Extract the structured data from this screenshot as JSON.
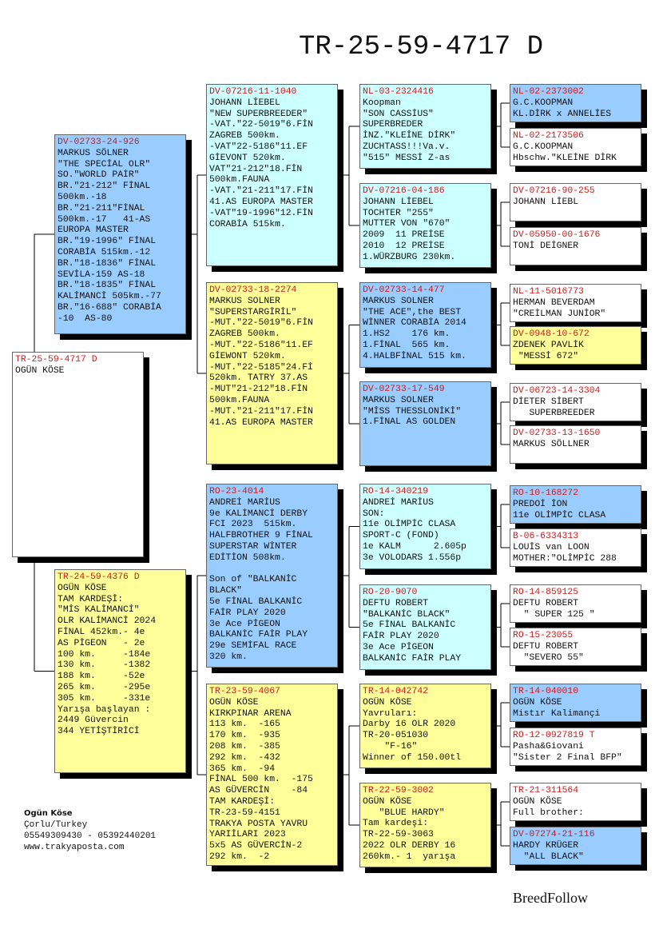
{
  "title": "TR-25-59-4717 D",
  "colors": {
    "blue": "#99ccff",
    "cyan": "#ccffff",
    "yellow": "#ffff99",
    "white": "#ffffff",
    "ring": "#d0191b"
  },
  "boxes": [
    {
      "id": "subject",
      "color": "#ffffff",
      "ring": "TR-25-59-4717 D",
      "lines": [
        "OGÜN KÖSE"
      ]
    },
    {
      "id": "sire",
      "color": "#99ccff",
      "ring": "DV-02733-24-926",
      "lines": [
        "MARKUS SÖLNER",
        "\"THE SPECİAL OLR\"",
        "SO.\"WORLD PAİR\"",
        "BR.\"21-212\" FİNAL",
        "500km.-18",
        "BR.\"21-211\"FİNAL",
        "500km.-17   41-AS",
        "EUROPA MASTER",
        "BR.\"19-1996\" FİNAL",
        "CORABİA 515km.-12",
        "BR.\"18-1836\" FİNAL",
        "SEVİLA-159 AS-18",
        "BR.\"18-1835\" FİNAL",
        "KALİMANCİ 505km.-77",
        "BR.\"16-688\" CORABİA",
        "-10  AS-80"
      ]
    },
    {
      "id": "dam",
      "color": "#ffff99",
      "ring": "TR-24-59-4376 D",
      "lines": [
        "OGÜN KÖSE",
        "TAM KARDEŞİ:",
        "\"MİS KALİMANCİ\"",
        "OLR KALİMANCİ 2024",
        "FİNAL 452km.- 4e",
        "AS PİGEON   - 2e",
        "100 km.     -184e",
        "130 km.     -1382",
        "188 km.     -52e",
        "265 km.     -295e",
        "305 km.     -331e",
        "Yarışa başlayan :",
        "2449 Güvercin",
        "344 YETİŞTİRİCİ"
      ]
    },
    {
      "id": "ss",
      "color": "#ccffff",
      "ring": "DV-07216-11-1040",
      "lines": [
        "JOHANN LİEBEL",
        "\"NEW SUPERBREEDER\"",
        "-VAT.\"22-5019\"6.FİN",
        "ZAGREB 500km.",
        "-VAT\"22-5186\"11.EF",
        "GİEVONT 520km.",
        "VAT\"21-212\"18.FİN",
        "500km.FAUNA",
        "-VAT.\"21-211\"17.FİN",
        "41.AS EUROPA MASTER",
        "-VAT\"19-1996\"12.FİN",
        "CORABİA 515km."
      ]
    },
    {
      "id": "sd",
      "color": "#ffff99",
      "ring": "DV-02733-18-2274",
      "lines": [
        "MARKUS SOLNER",
        "\"SUPERSTARGİRİL\"",
        "-MUT.\"22-5019\"6.FİN",
        "ZAGREB 500km.",
        "-MUT.\"22-5186\"11.EF",
        "GİEWONT 520km.",
        "-MUT.\"22-5185\"24.Fİ",
        "520km. TATRY 37.AS",
        "-MUT\"21-212\"18.FİN",
        "500km.FAUNA",
        "-MUT.\"21-211\"17.FİN",
        "41.AS EUROPA MASTER"
      ]
    },
    {
      "id": "ds",
      "color": "#99ccff",
      "ring": "RO-23-4014",
      "lines": [
        "ANDREİ MARİUS",
        "9e KALİMANCİ DERBY",
        "FCI 2023  515km.",
        "HALFBROTHER 9 FİNAL",
        "SUPERSTAR WİNTER",
        "EDİTİON 508km.",
        "",
        "Son of \"BALKANİC",
        "BLACK\"",
        "5e FİNAL BALKANİC",
        "FAİR PLAY 2020",
        "3e Ace PİGEON",
        "BALKANİC FAİR PLAY",
        "29e SEMİFAL RACE",
        "320 km."
      ]
    },
    {
      "id": "dd",
      "color": "#ffff99",
      "ring": "TR-23-59-4067",
      "lines": [
        "OGÜN KÖSE",
        "KIRKPINAR ARENA",
        "113 km.  -165",
        "170 km.  -935",
        "208 km.  -385",
        "292 km.  -432",
        "365 km.  -94",
        "FİNAL 500 km.  -175",
        "AS GÜVERCİN    -84",
        "TAM KARDEŞİ:",
        "TR-23-59-4151",
        "TRAKYA POSTA YAVRU",
        "YARIİLARI 2023",
        "5x5 AS GÜVERCİN-2",
        "292 km.  -2"
      ]
    },
    {
      "id": "sss",
      "color": "#ccffff",
      "ring": "NL-03-2324416",
      "lines": [
        "Koopman",
        "\"SON CASSİUS\"",
        "SUPERBREDER",
        "İNZ.\"KLEİNE DİRK\"",
        "ZUCHTASS!!!Va.v.",
        "\"515\" MESSİ Z-as"
      ]
    },
    {
      "id": "ssd",
      "color": "#ccffff",
      "ring": "DV-07216-04-186",
      "lines": [
        "JOHANN LİEBEL",
        "TOCHTER \"255\"",
        "MUTTER VON \"670\"",
        "2009  11 PREİSE",
        "2010  12 PREİSE",
        "1.WÜRZBURG 230km."
      ]
    },
    {
      "id": "sds",
      "color": "#99ccff",
      "ring": "DV-02733-14-477",
      "lines": [
        "MARKUS SOLNER",
        "\"THE ACE\",the BEST",
        "WİNNER CORABİA 2014",
        "1.HS2    176 km.",
        "1.FİNAL  565 km.",
        "4.HALBFİNAL 515 km."
      ]
    },
    {
      "id": "sdd",
      "color": "#99ccff",
      "ring": "DV-02733-17-549",
      "lines": [
        "MARKUS SOLNER",
        "\"MİSS THESSLONİKİ\"",
        "1.FİNAL AS GOLDEN"
      ]
    },
    {
      "id": "dss",
      "color": "#ccffff",
      "ring": "RO-14-340219",
      "lines": [
        "ANDREİ MARİUS",
        "SON:",
        "11e OLİMPİC CLASA",
        "SPORT-C (FOND)",
        "1e KALM      2.605p",
        "3e VOLODARS 1.556p"
      ]
    },
    {
      "id": "dsd",
      "color": "#ccffff",
      "ring": "RO-20-9070",
      "lines": [
        "DEFTU ROBERT",
        "\"BALKANİC BLACK\"",
        "5e FİNAL BALKANİC",
        "FAİR PLAY 2020",
        "3e Ace PİGEON",
        "BALKANİC FAİR PLAY"
      ]
    },
    {
      "id": "dds",
      "color": "#ffff99",
      "ring": "TR-14-042742",
      "lines": [
        "OGÜN KÖSE",
        "Yavruları:",
        "Darby 16 OLR 2020",
        "TR-20-051030",
        "    \"F-16\"",
        "Winner of 150.00tl"
      ]
    },
    {
      "id": "ddd",
      "color": "#ffff99",
      "ring": "TR-22-59-3002",
      "lines": [
        "OGÜN KÖSE",
        "   \"BLUE HARDY\"",
        "Tam kardeşi:",
        "TR-22-59-3063",
        "2022 OLR DERBY 16",
        "260km.- 1  yarışa"
      ]
    },
    {
      "id": "g4-1",
      "color": "#99ccff",
      "ring": "NL-02-2373002",
      "lines": [
        "G.C.KOOPMAN",
        "KL.DİRK x ANNELİES"
      ]
    },
    {
      "id": "g4-2",
      "color": "#ffffff",
      "ring": "NL-02-2173506",
      "lines": [
        "G.C.KOOPMAN",
        "Hbschw.\"KLEİNE DİRK"
      ]
    },
    {
      "id": "g4-3",
      "color": "#ffffff",
      "ring": "DV-07216-90-255",
      "lines": [
        "JOHANN LİEBL"
      ]
    },
    {
      "id": "g4-4",
      "color": "#ffffff",
      "ring": "DV-05950-00-1676",
      "lines": [
        "TONİ DEİGNER"
      ]
    },
    {
      "id": "g4-5",
      "color": "#ffffff",
      "ring": "NL-11-5016773",
      "lines": [
        "HERMAN BEVERDAM",
        "\"CREİLMAN JUNİOR\""
      ]
    },
    {
      "id": "g4-6",
      "color": "#ffff99",
      "ring": "DV-0948-10-672",
      "lines": [
        "ZDENEK PAVLİK",
        " \"MESSİ 672\""
      ]
    },
    {
      "id": "g4-7",
      "color": "#ffffff",
      "ring": "DV-06723-14-3304",
      "lines": [
        "DİETER SİBERT",
        "   SUPERBREEDER"
      ]
    },
    {
      "id": "g4-8",
      "color": "#ffffff",
      "ring": "DV-02733-13-1650",
      "lines": [
        "MARKUS SÖLLNER"
      ]
    },
    {
      "id": "g4-9",
      "color": "#99ccff",
      "ring": "RO-10-168272",
      "lines": [
        "PREDOİ İON",
        "11e OLİMPİC CLASA"
      ]
    },
    {
      "id": "g4-10",
      "color": "#ffffff",
      "ring": "B-06-6334313",
      "lines": [
        "LOUİS van LOON",
        "MOTHER:\"OLİMPİC 288"
      ]
    },
    {
      "id": "g4-11",
      "color": "#ffffff",
      "ring": "RO-14-859125",
      "lines": [
        "DEFTU ROBERT",
        "  \" SUPER 125 \""
      ]
    },
    {
      "id": "g4-12",
      "color": "#ffffff",
      "ring": "RO-15-23055",
      "lines": [
        "DEFTU ROBERT",
        "  \"SEVERO 55\""
      ]
    },
    {
      "id": "g4-13",
      "color": "#99ccff",
      "ring": "TR-14-040010",
      "lines": [
        "OGÜN KÖSE",
        "Mistır Kalimançi"
      ]
    },
    {
      "id": "g4-14",
      "color": "#ffffff",
      "ring": "RO-12-0927819 T",
      "lines": [
        "Pasha&Giovani",
        "\"Sister 2 Final BFP\""
      ]
    },
    {
      "id": "g4-15",
      "color": "#ffffff",
      "ring": "TR-21-311564",
      "lines": [
        "OGÜN KÖSE",
        "Full brother:"
      ]
    },
    {
      "id": "g4-16",
      "color": "#99ccff",
      "ring": "DV-07274-21-116",
      "lines": [
        "HARDY KRÜGER",
        "  \"ALL BLACK\""
      ]
    }
  ],
  "footer": {
    "name": "Ogün Köse",
    "city": "Çorlu/Turkey",
    "phones": "05549309430 - 05392440201",
    "website": "www.trakyaposta.com"
  },
  "brand": "BreedFollow"
}
